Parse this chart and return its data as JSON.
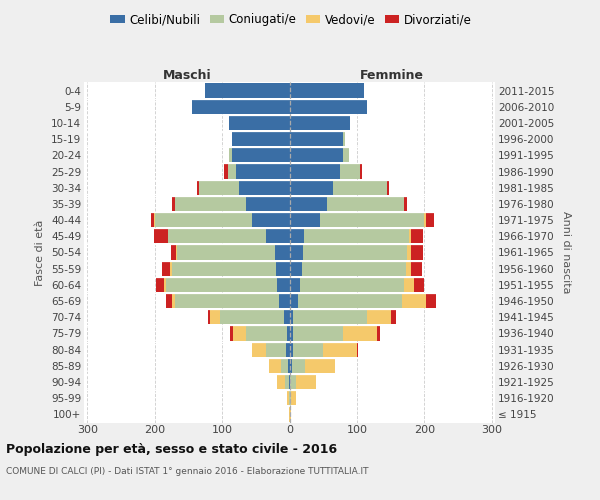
{
  "age_groups": [
    "100+",
    "95-99",
    "90-94",
    "85-89",
    "80-84",
    "75-79",
    "70-74",
    "65-69",
    "60-64",
    "55-59",
    "50-54",
    "45-49",
    "40-44",
    "35-39",
    "30-34",
    "25-29",
    "20-24",
    "15-19",
    "10-14",
    "5-9",
    "0-4"
  ],
  "birth_years": [
    "≤ 1915",
    "1916-1920",
    "1921-1925",
    "1926-1930",
    "1931-1935",
    "1936-1940",
    "1941-1945",
    "1946-1950",
    "1951-1955",
    "1956-1960",
    "1961-1965",
    "1966-1970",
    "1971-1975",
    "1976-1980",
    "1981-1985",
    "1986-1990",
    "1991-1995",
    "1996-2000",
    "2001-2005",
    "2006-2010",
    "2011-2015"
  ],
  "colors": {
    "celibi": "#3a6ea5",
    "coniugati": "#b5c9a0",
    "vedovi": "#f5c96b",
    "divorziati": "#cc2222"
  },
  "maschi": {
    "celibi": [
      0,
      0,
      1,
      2,
      5,
      4,
      8,
      15,
      18,
      20,
      22,
      35,
      55,
      65,
      75,
      80,
      85,
      85,
      90,
      145,
      125
    ],
    "coniugati": [
      0,
      1,
      5,
      10,
      30,
      60,
      95,
      155,
      165,
      155,
      145,
      145,
      145,
      105,
      60,
      12,
      5,
      0,
      0,
      0,
      0
    ],
    "vedovi": [
      1,
      3,
      12,
      18,
      20,
      20,
      15,
      4,
      3,
      2,
      1,
      1,
      1,
      0,
      0,
      0,
      0,
      0,
      0,
      0,
      0
    ],
    "divorziati": [
      0,
      0,
      0,
      0,
      1,
      5,
      3,
      10,
      12,
      12,
      8,
      20,
      5,
      5,
      3,
      5,
      0,
      0,
      0,
      0,
      0
    ]
  },
  "femmine": {
    "nubili": [
      0,
      0,
      1,
      3,
      5,
      5,
      5,
      12,
      15,
      18,
      20,
      22,
      45,
      55,
      65,
      75,
      80,
      80,
      90,
      115,
      110
    ],
    "coniugate": [
      0,
      2,
      8,
      20,
      45,
      75,
      110,
      155,
      155,
      155,
      155,
      155,
      155,
      115,
      80,
      30,
      8,
      2,
      0,
      0,
      0
    ],
    "vedove": [
      2,
      8,
      30,
      45,
      50,
      50,
      35,
      35,
      15,
      8,
      5,
      3,
      2,
      0,
      0,
      0,
      0,
      0,
      0,
      0,
      0
    ],
    "divorziate": [
      0,
      0,
      0,
      0,
      2,
      5,
      8,
      15,
      15,
      15,
      18,
      18,
      12,
      5,
      3,
      2,
      0,
      0,
      0,
      0,
      0
    ]
  },
  "title": "Popolazione per età, sesso e stato civile - 2016",
  "subtitle": "COMUNE DI CALCI (PI) - Dati ISTAT 1° gennaio 2016 - Elaborazione TUTTITALIA.IT",
  "xlabel_maschi": "Maschi",
  "xlabel_femmine": "Femmine",
  "ylabel_left": "Fasce di età",
  "ylabel_right": "Anni di nascita",
  "xlim": 305,
  "bg_color": "#efefef",
  "plot_bg": "#ffffff",
  "grid_color": "#cccccc",
  "legend_labels": [
    "Celibi/Nubili",
    "Coniugati/e",
    "Vedovi/e",
    "Divorziati/e"
  ]
}
